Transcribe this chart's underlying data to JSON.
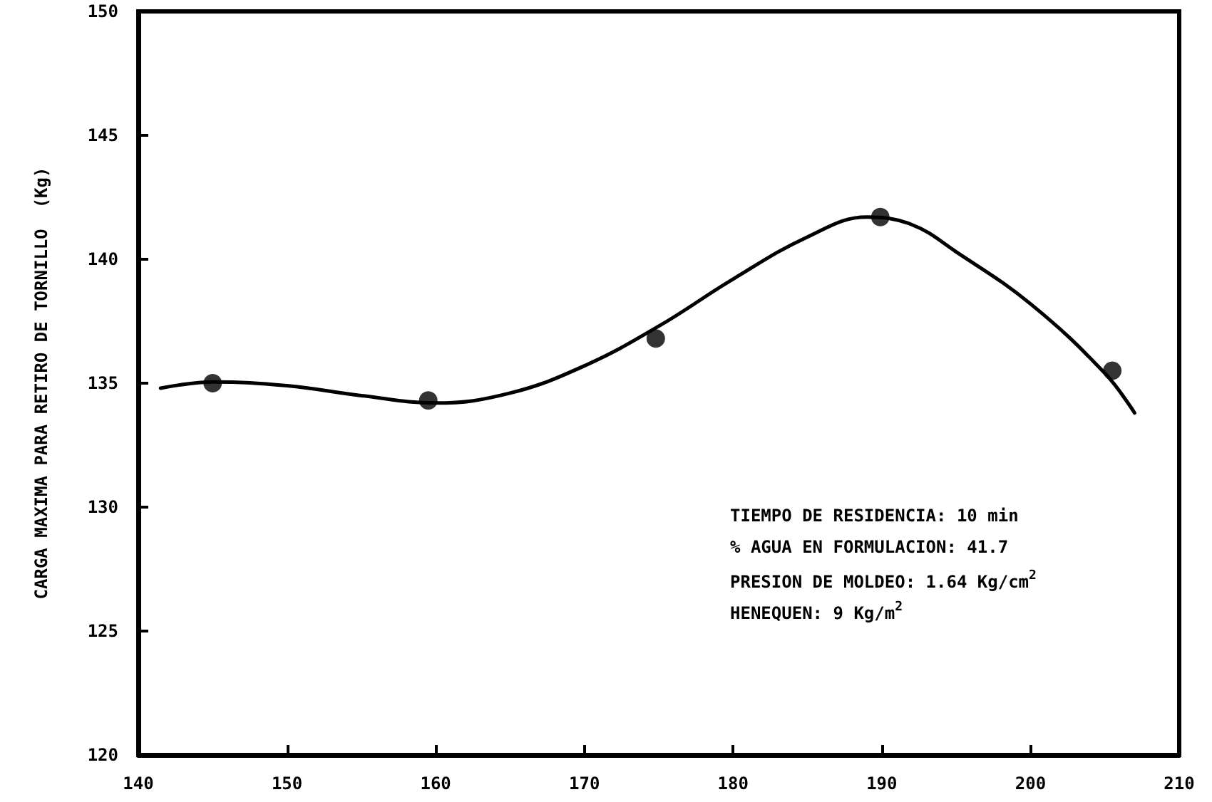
{
  "chart_data": {
    "type": "scatter",
    "ylabel": "CARGA MAXIMA PARA RETIRO DE TORNILLO  (Kg)",
    "xlim": [
      140,
      210
    ],
    "xticks": [
      140,
      150,
      160,
      170,
      180,
      190,
      200,
      210
    ],
    "ylim": [
      120,
      150
    ],
    "yticks": [
      120,
      125,
      130,
      135,
      140,
      145,
      150
    ],
    "grid": false,
    "series": [
      {
        "color": "#000000",
        "marker": "circle",
        "x": [
          145,
          159.5,
          174.8,
          189.9,
          205.5
        ],
        "values": [
          135.0,
          134.3,
          136.8,
          141.7,
          135.5
        ]
      },
      {
        "type": "line",
        "color": "#000000",
        "marker": "none",
        "line_style": "solid",
        "x": [
          141.5,
          145,
          150,
          155,
          160,
          165,
          170,
          175,
          180,
          185,
          189,
          192,
          195,
          200,
          205,
          207
        ],
        "values": [
          134.8,
          135.05,
          134.9,
          134.5,
          134.2,
          134.6,
          135.7,
          137.3,
          139.2,
          140.9,
          141.7,
          141.4,
          140.3,
          138.2,
          135.4,
          133.8
        ]
      }
    ],
    "annotations": [
      "TIEMPO DE RESIDENCIA: 10 min",
      "% AGUA EN FORMULACION: 41.7",
      "PRESION DE MOLDEO: 1.64 Kg/cm$^{2}$",
      "HENEQUEN: 9 Kg/m$^{2}$"
    ]
  }
}
